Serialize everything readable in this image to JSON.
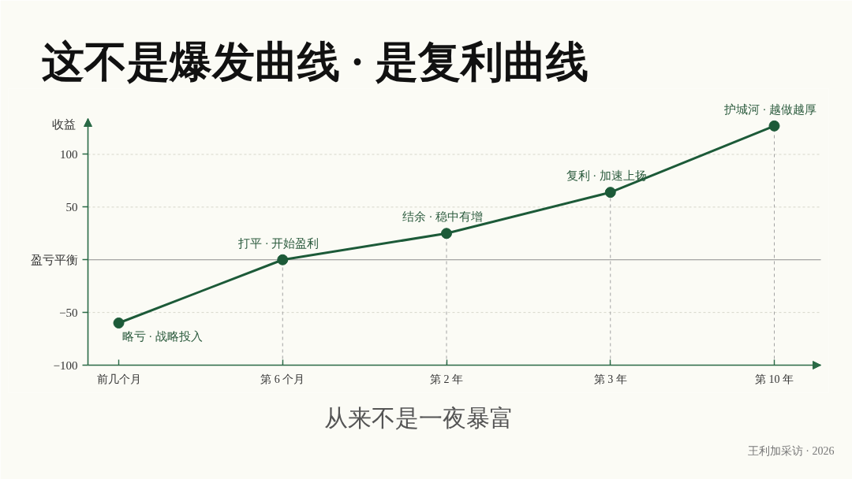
{
  "chart_data": {
    "type": "line",
    "title": "这不是爆发曲线 · 是复利曲线",
    "ylabel": "收益",
    "categories": [
      "前几个月",
      "第 6 个月",
      "第 2 年",
      "第 3 年",
      "第 10 年"
    ],
    "series": [
      {
        "color": "#1c5a38",
        "values": [
          -60,
          0,
          25,
          64,
          127
        ]
      }
    ],
    "marker": "circle",
    "line_style": "solid",
    "ylim": [
      -100,
      134
    ],
    "yticks": [
      {
        "value": -100,
        "label": "−100"
      },
      {
        "value": -50,
        "label": "−50"
      },
      {
        "value": 0,
        "label": "盈亏平衡"
      },
      50,
      100
    ],
    "grid": "y",
    "ref_lines": [
      {
        "axis": "y",
        "value": 0,
        "color": "#8c8c8c"
      },
      {
        "axis": "x",
        "value": "第 6 个月",
        "color": "#a3a3a3",
        "line_style": "dashed"
      },
      {
        "axis": "x",
        "value": "第 2 年",
        "color": "#a3a3a3",
        "line_style": "dashed"
      },
      {
        "axis": "x",
        "value": "第 3 年",
        "color": "#a3a3a3",
        "line_style": "dashed"
      },
      {
        "axis": "x",
        "value": "第 10 年",
        "color": "#a3a3a3",
        "line_style": "dashed"
      }
    ],
    "annotations": [
      {
        "text": "略亏 · 战略投入",
        "x": "前几个月",
        "y": -60
      },
      {
        "text": "打平 · 开始盈利",
        "x": "第 6 个月",
        "y": 0
      },
      {
        "text": "结余 · 稳中有增",
        "x": "第 2 年",
        "y": 25
      },
      {
        "text": "复利 · 加速上扬",
        "x": "第 3 年",
        "y": 64
      },
      {
        "text": "护城河 · 越做越厚",
        "x": "第 10 年",
        "y": 127
      },
      "从来不是一夜暴富",
      "王利加采访 · 2026"
    ]
  }
}
